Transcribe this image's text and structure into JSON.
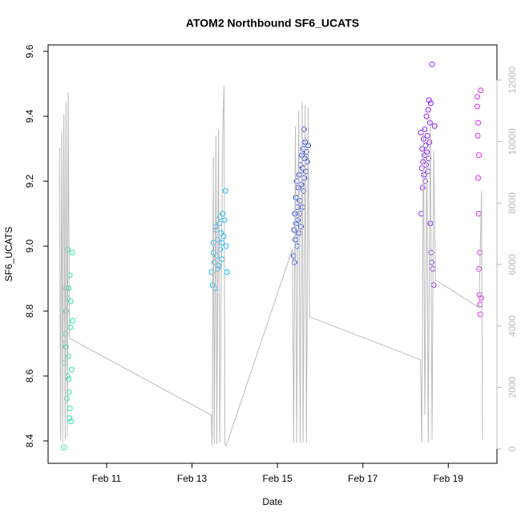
{
  "chart_data": {
    "type": "scatter",
    "title": "ATOM2 Northbound SF6_UCATS",
    "x_label": "Date",
    "y_label": "SF6_UCATS",
    "xlim": [
      9.63,
      20.14
    ],
    "xticks": [
      {
        "value": 11,
        "label": "Feb 11"
      },
      {
        "value": 13,
        "label": "Feb 13"
      },
      {
        "value": 15,
        "label": "Feb 15"
      },
      {
        "value": 17,
        "label": "Feb 17"
      },
      {
        "value": 19,
        "label": "Feb 19"
      }
    ],
    "ylim": [
      8.331,
      9.62
    ],
    "yticks": [
      8.4,
      8.6,
      8.8,
      {
        "value": 9,
        "label": "9.0"
      },
      9.2,
      9.4,
      9.6
    ],
    "y2lim": [
      -470,
      13148
    ],
    "y2ticks": [
      0,
      2000,
      4000,
      6000,
      8000,
      10000,
      12000
    ],
    "y2_color": "#bbbbbb",
    "series": [
      {
        "type": "scatter",
        "color": "#1de9b0",
        "x": [
          10.0,
          10.02,
          10.03,
          10.04,
          10.05,
          10.06,
          10.07,
          10.08,
          10.09,
          10.1,
          10.11,
          10.12,
          10.13,
          10.14,
          10.15,
          10.16,
          10.17,
          10.18,
          10.19,
          10.2,
          10.05,
          10.08,
          10.11,
          10.14
        ],
        "values": [
          8.38,
          8.64,
          8.7,
          8.73,
          8.8,
          8.87,
          8.53,
          8.6,
          8.99,
          8.66,
          8.87,
          8.55,
          8.47,
          8.91,
          8.75,
          8.83,
          8.46,
          8.62,
          8.98,
          8.77,
          8.69,
          8.84,
          8.59,
          8.5
        ]
      },
      {
        "type": "scatter",
        "color": "#00bfff",
        "x": [
          13.46,
          13.48,
          13.5,
          13.52,
          13.54,
          13.56,
          13.58,
          13.6,
          13.62,
          13.64,
          13.66,
          13.68,
          13.7,
          13.72,
          13.74,
          13.76,
          13.78,
          13.8,
          13.82,
          13.5,
          13.55,
          13.6,
          13.65,
          13.7
        ],
        "values": [
          8.92,
          8.88,
          9.01,
          8.95,
          8.87,
          9.05,
          8.97,
          9.02,
          8.94,
          9.07,
          8.99,
          9.04,
          8.96,
          9.1,
          9.03,
          9.08,
          9.17,
          9.0,
          8.92,
          8.98,
          9.06,
          8.93,
          9.09,
          9.01
        ]
      },
      {
        "type": "scatter",
        "color": "#1a3cff",
        "x": [
          15.38,
          15.39,
          15.4,
          15.41,
          15.42,
          15.43,
          15.44,
          15.45,
          15.46,
          15.47,
          15.48,
          15.49,
          15.5,
          15.51,
          15.52,
          15.53,
          15.54,
          15.55,
          15.56,
          15.57,
          15.58,
          15.59,
          15.6,
          15.61,
          15.62,
          15.63,
          15.64,
          15.65,
          15.66,
          15.68,
          15.7,
          15.72
        ],
        "values": [
          8.97,
          9.05,
          8.95,
          9.1,
          9.02,
          9.15,
          9.07,
          9.2,
          9.0,
          9.12,
          9.08,
          9.18,
          9.04,
          9.22,
          9.14,
          9.1,
          9.25,
          9.06,
          9.19,
          9.28,
          9.12,
          9.24,
          9.3,
          9.17,
          9.36,
          9.21,
          9.27,
          9.32,
          9.23,
          9.29,
          9.26,
          9.31
        ]
      },
      {
        "type": "scatter",
        "color": "#8a20ff",
        "x": [
          18.36,
          18.37,
          18.38,
          18.39,
          18.4,
          18.41,
          18.42,
          18.43,
          18.44,
          18.45,
          18.46,
          18.47,
          18.48,
          18.49,
          18.5,
          18.51,
          18.52,
          18.53,
          18.54,
          18.55,
          18.56,
          18.57,
          18.58,
          18.59,
          18.6,
          18.61,
          18.62,
          18.64,
          18.66,
          18.68
        ],
        "values": [
          9.35,
          9.1,
          9.24,
          9.3,
          9.18,
          9.26,
          9.33,
          9.22,
          9.28,
          9.36,
          9.2,
          9.31,
          9.25,
          9.4,
          9.29,
          9.34,
          9.23,
          9.42,
          9.27,
          9.45,
          9.32,
          9.38,
          9.07,
          9.44,
          8.98,
          8.95,
          9.56,
          8.93,
          8.88,
          9.37
        ]
      },
      {
        "type": "scatter",
        "color": "#e020f0",
        "x": [
          19.68,
          19.69,
          19.7,
          19.71,
          19.72,
          19.73,
          19.74,
          19.75,
          19.68,
          19.7,
          19.72,
          19.74,
          19.76,
          19.77
        ],
        "values": [
          9.46,
          9.34,
          9.21,
          9.1,
          8.93,
          8.85,
          8.82,
          8.79,
          9.43,
          9.38,
          9.28,
          8.98,
          9.48,
          8.84
        ]
      },
      {
        "type": "line",
        "axis": "y2",
        "color": "#bbbbbb",
        "x": [
          9.9,
          9.92,
          9.95,
          9.97,
          10.0,
          10.03,
          10.05,
          10.08,
          10.1,
          10.13,
          13.45,
          13.47,
          13.5,
          13.52,
          13.56,
          13.58,
          13.62,
          13.65,
          13.72,
          13.75,
          13.77,
          13.8,
          15.35,
          15.38,
          15.42,
          15.45,
          15.5,
          15.53,
          15.58,
          15.6,
          15.65,
          15.68,
          15.72,
          15.75,
          18.35,
          18.38,
          18.42,
          18.45,
          18.5,
          18.53,
          18.58,
          18.62,
          18.66,
          18.7,
          19.72,
          19.78,
          19.8
        ],
        "values": [
          9800,
          300,
          10300,
          200,
          10900,
          300,
          11300,
          400,
          11600,
          3600,
          1100,
          100,
          9500,
          150,
          10200,
          150,
          10400,
          200,
          10500,
          11800,
          150,
          100,
          6500,
          200,
          10500,
          200,
          11000,
          200,
          11300,
          200,
          11200,
          200,
          11100,
          4300,
          2900,
          200,
          10500,
          1100,
          9900,
          200,
          10800,
          300,
          9700,
          5500,
          4600,
          8400,
          300
        ]
      }
    ]
  }
}
